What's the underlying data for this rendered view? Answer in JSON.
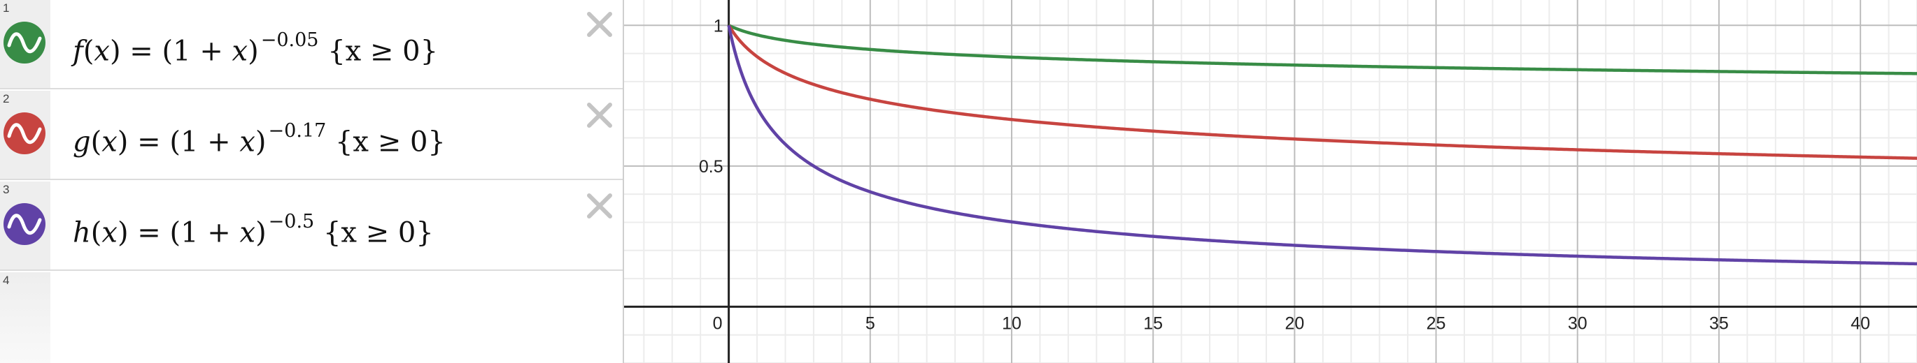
{
  "expressions": [
    {
      "index": "1",
      "name": "f",
      "var": "x",
      "base": "(1 + ",
      "exponent": "−0.05",
      "restriction": "{x ≥ 0}",
      "color": "#388c46",
      "icon": "graph-wave-icon",
      "exp_value": -0.05
    },
    {
      "index": "2",
      "name": "g",
      "var": "x",
      "base": "(1 + ",
      "exponent": "−0.17",
      "restriction": "{x ≥ 0}",
      "color": "#c74440",
      "icon": "graph-wave-icon",
      "exp_value": -0.17
    },
    {
      "index": "3",
      "name": "h",
      "var": "x",
      "base": "(1 + ",
      "exponent": "−0.5",
      "restriction": "{x ≥ 0}",
      "color": "#6042a6",
      "icon": "graph-wave-icon",
      "exp_value": -0.5
    },
    {
      "index": "4"
    }
  ],
  "icons": {
    "delete": "close-icon",
    "series": "graph-wave-icon"
  },
  "chart_data": {
    "type": "line",
    "title": "",
    "xlabel": "",
    "ylabel": "",
    "xlim": [
      -3.7,
      42
    ],
    "ylim": [
      -0.2,
      1.09
    ],
    "x_ticks": [
      "0",
      "5",
      "10",
      "15",
      "20",
      "25",
      "30",
      "35",
      "40"
    ],
    "y_ticks": [
      "0.5",
      "1"
    ],
    "grid": true,
    "series": [
      {
        "name": "f(x) = (1 + x)^−0.05 {x ≥ 0}",
        "color": "#388c46",
        "exponent": -0.05,
        "x": [
          0,
          5,
          10,
          15,
          20,
          25,
          30,
          35,
          40
        ],
        "values": [
          1.0,
          0.914,
          0.887,
          0.871,
          0.859,
          0.85,
          0.842,
          0.836,
          0.831
        ]
      },
      {
        "name": "g(x) = (1 + x)^−0.17 {x ≥ 0}",
        "color": "#c74440",
        "exponent": -0.17,
        "x": [
          0,
          5,
          10,
          15,
          20,
          25,
          30,
          35,
          40
        ],
        "values": [
          1.0,
          0.737,
          0.665,
          0.624,
          0.596,
          0.575,
          0.558,
          0.544,
          0.532
        ]
      },
      {
        "name": "h(x) = (1 + x)^−0.5 {x ≥ 0}",
        "color": "#6042a6",
        "exponent": -0.5,
        "x": [
          0,
          5,
          10,
          15,
          20,
          25,
          30,
          35,
          40
        ],
        "values": [
          1.0,
          0.408,
          0.302,
          0.25,
          0.218,
          0.196,
          0.18,
          0.167,
          0.156
        ]
      }
    ]
  }
}
